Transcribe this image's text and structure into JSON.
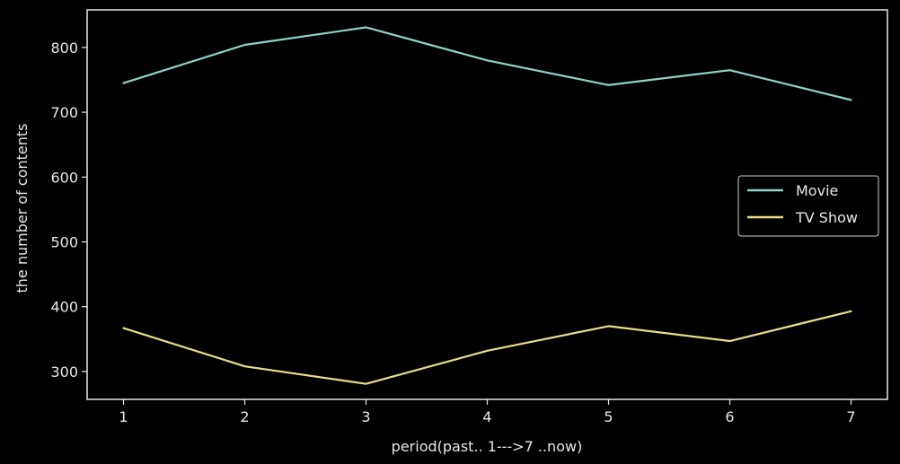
{
  "chart_data": {
    "type": "line",
    "title": "",
    "xlabel": "period(past.. 1--->7 ..now)",
    "ylabel": "the number of contents",
    "x": [
      1,
      2,
      3,
      4,
      5,
      6,
      7
    ],
    "xlim": [
      0.7,
      7.3
    ],
    "ylim": [
      257,
      858
    ],
    "xticks": [
      1,
      2,
      3,
      4,
      5,
      6,
      7
    ],
    "yticks": [
      300,
      400,
      500,
      600,
      700,
      800
    ],
    "grid": false,
    "legend_position": "center-right",
    "background": "#000000",
    "axis_color": "#e8e8e8",
    "series": [
      {
        "name": "Movie",
        "color": "#8dd3c7",
        "values": [
          745,
          804,
          831,
          780,
          742,
          765,
          719
        ]
      },
      {
        "name": "TV Show",
        "color": "#e8dd8a",
        "values": [
          367,
          308,
          281,
          332,
          370,
          347,
          393
        ]
      }
    ]
  }
}
